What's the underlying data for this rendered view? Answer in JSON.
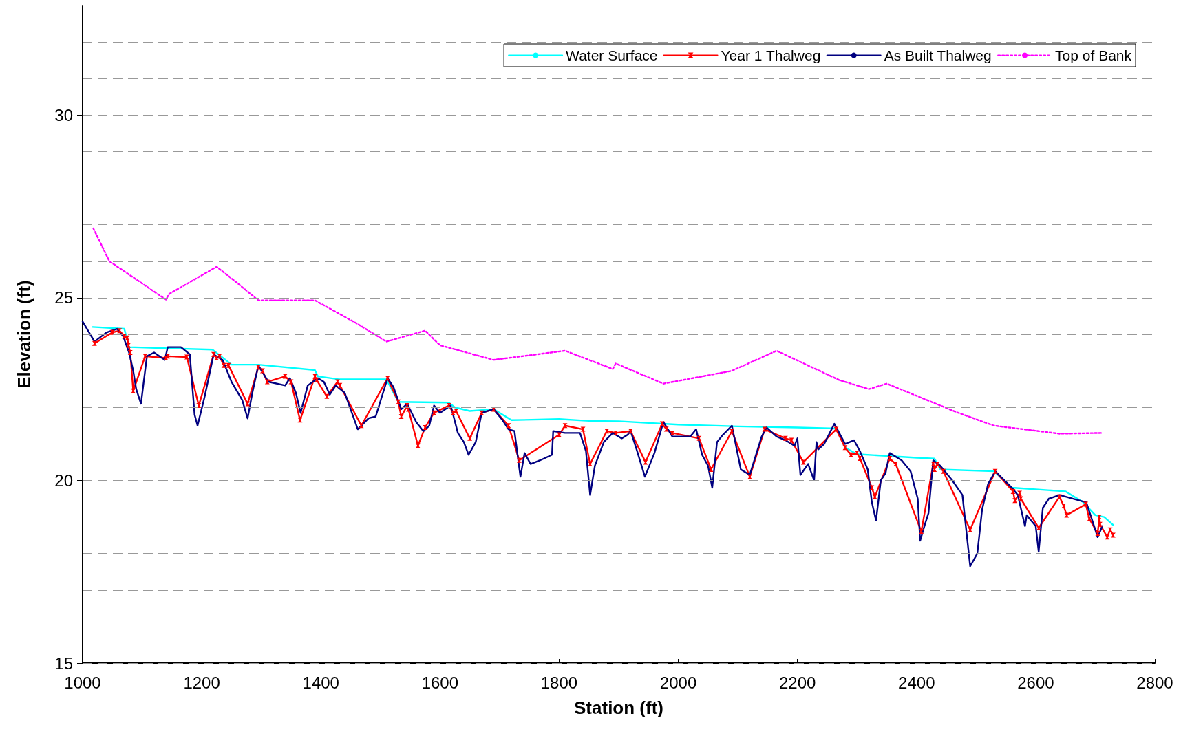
{
  "chart_data": {
    "type": "line",
    "xlabel": "Station (ft)",
    "ylabel": "Elevation (ft)",
    "xlim": [
      1000,
      2800
    ],
    "xticks": [
      1000,
      1200,
      1400,
      1600,
      1800,
      2000,
      2200,
      2400,
      2600,
      2800
    ],
    "ylim": [
      15,
      33
    ],
    "yticks": [
      15,
      {
        "value": 16,
        "label": null
      },
      {
        "value": 17,
        "label": null
      },
      {
        "value": 18,
        "label": null
      },
      {
        "value": 19,
        "label": null
      },
      20,
      {
        "value": 21,
        "label": null
      },
      {
        "value": 22,
        "label": null
      },
      {
        "value": 23,
        "label": null
      },
      {
        "value": 24,
        "label": null
      },
      25,
      {
        "value": 26,
        "label": null
      },
      {
        "value": 27,
        "label": null
      },
      {
        "value": 28,
        "label": null
      },
      {
        "value": 29,
        "label": null
      },
      30,
      {
        "value": 31,
        "label": null
      },
      {
        "value": 32,
        "label": null
      },
      {
        "value": 33,
        "label": null
      }
    ],
    "grid": "y",
    "legend": "top right",
    "series": [
      {
        "name": "Water Surface",
        "color": "#00ffff",
        "marker": "none",
        "line_style": "solid",
        "x": [
          1017,
          1070,
          1078,
          1218,
          1240,
          1250,
          1295,
          1390,
          1395,
          1430,
          1510,
          1530,
          1615,
          1625,
          1650,
          1690,
          1720,
          1800,
          1850,
          1900,
          2000,
          2100,
          2200,
          2265,
          2280,
          2300,
          2400,
          2430,
          2440,
          2530,
          2560,
          2650,
          2680,
          2700,
          2715,
          2730
        ],
        "values": [
          24.2,
          24.15,
          23.65,
          23.58,
          23.3,
          23.17,
          23.17,
          23.02,
          22.85,
          22.77,
          22.77,
          22.15,
          22.13,
          22.0,
          21.9,
          21.95,
          21.65,
          21.68,
          21.63,
          21.62,
          21.53,
          21.48,
          21.45,
          21.42,
          20.9,
          20.72,
          20.62,
          20.6,
          20.3,
          20.25,
          19.8,
          19.7,
          19.4,
          19.05,
          19.0,
          18.78
        ]
      },
      {
        "name": "Year 1 Thalweg",
        "color": "#ff0000",
        "marker": "cross",
        "line_style": "solid",
        "x": [
          1020,
          1050,
          1062,
          1070,
          1075,
          1077,
          1080,
          1085,
          1105,
          1140,
          1143,
          1175,
          1195,
          1220,
          1225,
          1230,
          1237,
          1245,
          1277,
          1295,
          1302,
          1310,
          1340,
          1350,
          1365,
          1390,
          1393,
          1410,
          1428,
          1432,
          1468,
          1512,
          1530,
          1535,
          1545,
          1547,
          1563,
          1575,
          1590,
          1615,
          1622,
          1627,
          1650,
          1670,
          1690,
          1715,
          1733,
          1800,
          1810,
          1840,
          1852,
          1880,
          1895,
          1920,
          1945,
          1973,
          1980,
          1990,
          2035,
          2055,
          2090,
          2120,
          2145,
          2180,
          2190,
          2210,
          2265,
          2280,
          2290,
          2300,
          2305,
          2325,
          2330,
          2355,
          2365,
          2408,
          2428,
          2430,
          2435,
          2445,
          2490,
          2532,
          2562,
          2565,
          2573,
          2575,
          2605,
          2640,
          2647,
          2652,
          2684,
          2690,
          2704,
          2707,
          2708,
          2720,
          2725,
          2730
        ],
        "values": [
          23.75,
          24.05,
          24.1,
          23.95,
          23.9,
          23.7,
          23.5,
          22.45,
          23.4,
          23.35,
          23.4,
          23.38,
          22.05,
          23.45,
          23.35,
          23.4,
          23.15,
          23.15,
          22.1,
          23.1,
          23.0,
          22.7,
          22.85,
          22.7,
          21.65,
          22.85,
          22.75,
          22.3,
          22.7,
          22.6,
          21.5,
          22.8,
          22.15,
          21.75,
          22.05,
          21.95,
          20.95,
          21.45,
          21.85,
          22.05,
          21.85,
          21.9,
          21.15,
          21.85,
          21.95,
          21.5,
          20.55,
          21.25,
          21.5,
          21.4,
          20.45,
          21.35,
          21.3,
          21.35,
          20.5,
          21.55,
          21.4,
          21.3,
          21.15,
          20.3,
          21.35,
          20.1,
          21.4,
          21.15,
          21.1,
          20.5,
          21.4,
          20.9,
          20.7,
          20.75,
          20.6,
          19.8,
          19.55,
          20.6,
          20.45,
          18.6,
          20.45,
          20.3,
          20.45,
          20.25,
          18.65,
          20.25,
          19.7,
          19.45,
          19.65,
          19.5,
          18.7,
          19.55,
          19.3,
          19.05,
          19.35,
          18.95,
          18.55,
          19.0,
          18.8,
          18.45,
          18.65,
          18.5
        ]
      },
      {
        "name": "As Built Thalweg",
        "color": "#000080",
        "marker": "none",
        "line_style": "solid",
        "x": [
          1000,
          1020,
          1040,
          1058,
          1068,
          1078,
          1085,
          1090,
          1098,
          1108,
          1120,
          1138,
          1143,
          1165,
          1180,
          1188,
          1193,
          1205,
          1220,
          1235,
          1250,
          1268,
          1277,
          1285,
          1295,
          1312,
          1340,
          1348,
          1358,
          1366,
          1378,
          1395,
          1405,
          1415,
          1425,
          1440,
          1462,
          1480,
          1492,
          1512,
          1522,
          1535,
          1545,
          1560,
          1572,
          1582,
          1590,
          1600,
          1618,
          1630,
          1640,
          1648,
          1660,
          1670,
          1690,
          1705,
          1715,
          1725,
          1735,
          1742,
          1752,
          1768,
          1788,
          1790,
          1810,
          1835,
          1845,
          1852,
          1860,
          1875,
          1890,
          1905,
          1915,
          1920,
          1930,
          1944,
          1960,
          1975,
          1990,
          2020,
          2030,
          2040,
          2050,
          2057,
          2065,
          2075,
          2090,
          2105,
          2120,
          2140,
          2148,
          2165,
          2180,
          2195,
          2200,
          2205,
          2218,
          2228,
          2232,
          2235,
          2245,
          2262,
          2280,
          2295,
          2305,
          2318,
          2325,
          2332,
          2340,
          2348,
          2355,
          2375,
          2390,
          2402,
          2406,
          2415,
          2420,
          2428,
          2440,
          2460,
          2477,
          2490,
          2502,
          2510,
          2520,
          2532,
          2560,
          2570,
          2582,
          2585,
          2600,
          2605,
          2612,
          2622,
          2640,
          2685,
          2695,
          2704,
          2712
        ],
        "values": [
          24.35,
          23.8,
          24.05,
          24.15,
          23.95,
          23.5,
          23.0,
          22.5,
          22.1,
          23.4,
          23.5,
          23.3,
          23.65,
          23.65,
          23.45,
          21.8,
          21.5,
          22.3,
          23.45,
          23.3,
          22.7,
          22.2,
          21.7,
          22.4,
          23.15,
          22.7,
          22.6,
          22.8,
          22.4,
          21.85,
          22.6,
          22.8,
          22.7,
          22.35,
          22.6,
          22.4,
          21.4,
          21.7,
          21.75,
          22.8,
          22.55,
          21.95,
          22.1,
          21.6,
          21.35,
          21.5,
          22.05,
          21.85,
          22.05,
          21.3,
          21.05,
          20.7,
          21.05,
          21.85,
          21.95,
          21.65,
          21.4,
          21.35,
          20.1,
          20.75,
          20.45,
          20.55,
          20.7,
          21.35,
          21.3,
          21.3,
          20.8,
          19.6,
          20.4,
          21.05,
          21.3,
          21.15,
          21.25,
          21.35,
          20.85,
          20.1,
          20.75,
          21.6,
          21.2,
          21.2,
          21.4,
          20.7,
          20.4,
          19.8,
          21.05,
          21.25,
          21.5,
          20.3,
          20.15,
          21.2,
          21.45,
          21.2,
          21.1,
          20.95,
          21.15,
          20.15,
          20.45,
          20.0,
          21.05,
          20.85,
          21.0,
          21.55,
          21.0,
          21.1,
          20.8,
          20.3,
          19.4,
          18.9,
          20.0,
          20.2,
          20.75,
          20.55,
          20.25,
          19.5,
          18.35,
          18.85,
          19.1,
          20.55,
          20.4,
          20.0,
          19.6,
          17.65,
          18.0,
          19.2,
          19.9,
          20.25,
          19.8,
          19.6,
          18.75,
          19.05,
          18.75,
          18.05,
          19.25,
          19.5,
          19.6,
          19.4,
          18.9,
          18.45,
          18.75
        ]
      },
      {
        "name": "Top of Bank",
        "color": "#ff00ff",
        "marker": "none",
        "line_style": "dotted",
        "x": [
          1018,
          1045,
          1140,
          1145,
          1225,
          1260,
          1295,
          1390,
          1460,
          1510,
          1575,
          1600,
          1690,
          1810,
          1890,
          1895,
          1975,
          2090,
          2165,
          2270,
          2320,
          2350,
          2470,
          2530,
          2640,
          2710
        ],
        "values": [
          26.9,
          26.0,
          24.95,
          25.1,
          25.85,
          25.4,
          24.93,
          24.93,
          24.3,
          23.8,
          24.1,
          23.7,
          23.3,
          23.55,
          23.05,
          23.2,
          22.65,
          23.0,
          23.55,
          22.75,
          22.5,
          22.65,
          21.85,
          21.5,
          21.28,
          21.3
        ]
      }
    ]
  }
}
